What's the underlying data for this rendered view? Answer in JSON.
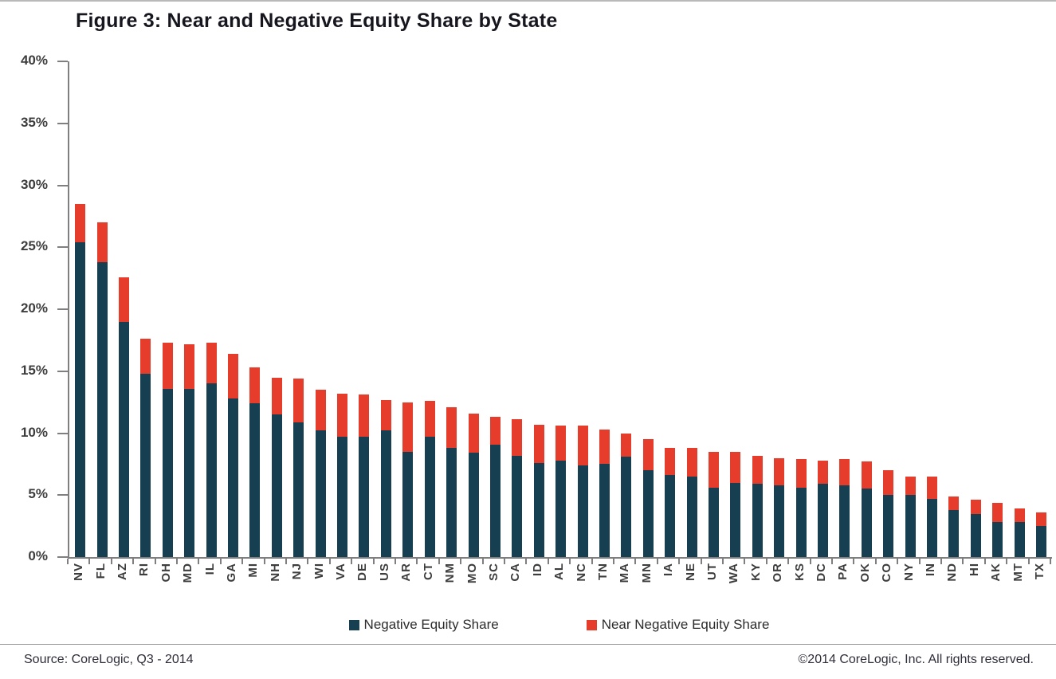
{
  "title": "Figure 3: Near and Negative Equity Share by State",
  "footer": {
    "source_left": "Source: CoreLogic, Q3 - 2014",
    "source_right": "©2014 CoreLogic, Inc. All rights reserved."
  },
  "legend": {
    "items": [
      {
        "label": "Negative Equity Share",
        "color": "#173F52"
      },
      {
        "label": "Near Negative Equity Share",
        "color": "#E53C2C"
      }
    ]
  },
  "colors": {
    "negative_equity": "#173F52",
    "near_negative_equity": "#E53C2C",
    "axis": "#7f7f7f",
    "text": "#3d3d3d"
  },
  "chart_data": {
    "type": "bar",
    "stacked": true,
    "title": "Figure 3: Near and Negative Equity Share by State",
    "xlabel": "",
    "ylabel": "",
    "ylim": [
      0,
      40
    ],
    "ytick_step": 5,
    "yticks": [
      "40%",
      "35%",
      "30%",
      "25%",
      "20%",
      "15%",
      "10%",
      "5%",
      "0%"
    ],
    "grid": false,
    "legend_position": "bottom",
    "categories": [
      "NV",
      "FL",
      "AZ",
      "RI",
      "OH",
      "MD",
      "IL",
      "GA",
      "MI",
      "NH",
      "NJ",
      "WI",
      "VA",
      "DE",
      "US",
      "AR",
      "CT",
      "NM",
      "MO",
      "SC",
      "CA",
      "ID",
      "AL",
      "NC",
      "TN",
      "MA",
      "MN",
      "IA",
      "NE",
      "UT",
      "WA",
      "KY",
      "OR",
      "KS",
      "DC",
      "PA",
      "OK",
      "CO",
      "NY",
      "IN",
      "ND",
      "HI",
      "AK",
      "MT",
      "TX"
    ],
    "series": [
      {
        "name": "Negative Equity Share",
        "color": "#173F52",
        "values": [
          25.4,
          23.8,
          19.0,
          14.8,
          13.6,
          13.6,
          14.0,
          12.8,
          12.4,
          11.5,
          10.9,
          10.2,
          9.7,
          9.7,
          10.2,
          8.5,
          9.7,
          8.8,
          8.4,
          9.1,
          8.2,
          7.6,
          7.8,
          7.4,
          7.5,
          8.1,
          7.0,
          6.6,
          6.5,
          5.6,
          6.0,
          5.9,
          5.8,
          5.6,
          5.9,
          5.8,
          5.5,
          5.0,
          5.0,
          4.7,
          3.8,
          3.5,
          2.8,
          2.8,
          2.5
        ]
      },
      {
        "name": "Near Negative Equity Share",
        "color": "#E53C2C",
        "values": [
          3.1,
          3.2,
          3.6,
          2.8,
          3.7,
          3.6,
          3.3,
          3.6,
          2.9,
          3.0,
          3.5,
          3.3,
          3.5,
          3.4,
          2.5,
          4.0,
          2.9,
          3.3,
          3.2,
          2.2,
          2.9,
          3.1,
          2.8,
          3.2,
          2.8,
          1.9,
          2.5,
          2.2,
          2.3,
          2.9,
          2.5,
          2.3,
          2.2,
          2.3,
          1.9,
          2.1,
          2.2,
          2.0,
          1.5,
          1.8,
          1.1,
          1.1,
          1.6,
          1.1,
          1.1
        ]
      }
    ]
  }
}
